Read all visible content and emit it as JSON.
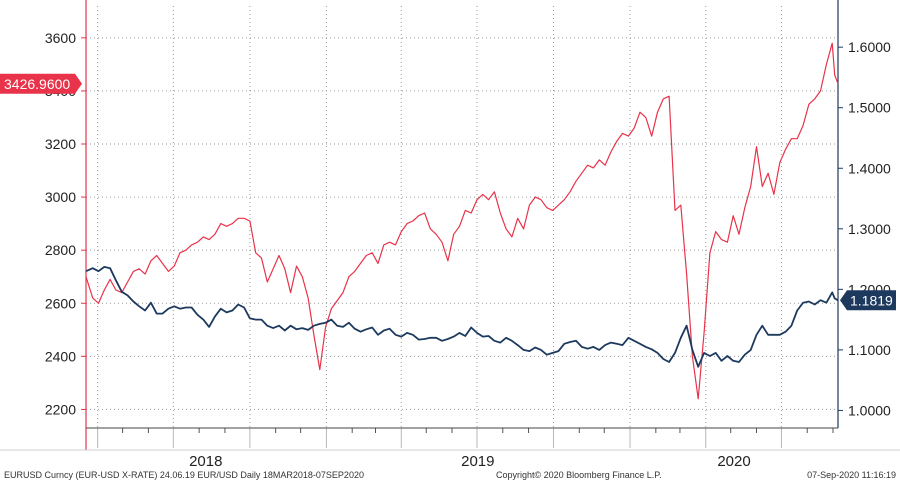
{
  "chart_data": {
    "type": "line",
    "x_range": [
      "2018-03-18",
      "2020-09-07"
    ],
    "x_tick_labels": [
      "2018",
      "2019",
      "2020"
    ],
    "left_axis": {
      "ticks": [
        2200,
        2400,
        2600,
        2800,
        3000,
        3200,
        3400,
        3600
      ],
      "ylim": [
        2130,
        3720
      ]
    },
    "right_axis": {
      "ticks": [
        "1.0000",
        "1.1000",
        "1.2000",
        "1.3000",
        "1.4000",
        "1.5000",
        "1.6000"
      ],
      "ylim": [
        0.971,
        1.668
      ]
    },
    "grid": true,
    "series": [
      {
        "axis": "left",
        "color": "#e8334a",
        "last_value_label": "3426.9600",
        "points": [
          [
            "2018-03-18",
            2700
          ],
          [
            "2018-03-26",
            2620
          ],
          [
            "2018-04-02",
            2600
          ],
          [
            "2018-04-09",
            2650
          ],
          [
            "2018-04-16",
            2690
          ],
          [
            "2018-04-23",
            2650
          ],
          [
            "2018-04-30",
            2640
          ],
          [
            "2018-05-07",
            2680
          ],
          [
            "2018-05-14",
            2720
          ],
          [
            "2018-05-21",
            2730
          ],
          [
            "2018-05-28",
            2710
          ],
          [
            "2018-06-04",
            2760
          ],
          [
            "2018-06-11",
            2780
          ],
          [
            "2018-06-18",
            2750
          ],
          [
            "2018-06-25",
            2720
          ],
          [
            "2018-07-02",
            2740
          ],
          [
            "2018-07-09",
            2790
          ],
          [
            "2018-07-16",
            2800
          ],
          [
            "2018-07-23",
            2820
          ],
          [
            "2018-07-30",
            2830
          ],
          [
            "2018-08-06",
            2850
          ],
          [
            "2018-08-13",
            2840
          ],
          [
            "2018-08-20",
            2860
          ],
          [
            "2018-08-27",
            2900
          ],
          [
            "2018-09-03",
            2890
          ],
          [
            "2018-09-10",
            2900
          ],
          [
            "2018-09-17",
            2920
          ],
          [
            "2018-09-24",
            2920
          ],
          [
            "2018-10-01",
            2910
          ],
          [
            "2018-10-08",
            2790
          ],
          [
            "2018-10-15",
            2770
          ],
          [
            "2018-10-22",
            2680
          ],
          [
            "2018-10-29",
            2730
          ],
          [
            "2018-11-05",
            2780
          ],
          [
            "2018-11-12",
            2730
          ],
          [
            "2018-11-19",
            2640
          ],
          [
            "2018-11-26",
            2740
          ],
          [
            "2018-12-03",
            2700
          ],
          [
            "2018-12-10",
            2620
          ],
          [
            "2018-12-17",
            2480
          ],
          [
            "2018-12-24",
            2350
          ],
          [
            "2018-12-31",
            2510
          ],
          [
            "2019-01-07",
            2580
          ],
          [
            "2019-01-14",
            2610
          ],
          [
            "2019-01-21",
            2640
          ],
          [
            "2019-01-28",
            2700
          ],
          [
            "2019-02-04",
            2720
          ],
          [
            "2019-02-11",
            2750
          ],
          [
            "2019-02-18",
            2780
          ],
          [
            "2019-02-25",
            2790
          ],
          [
            "2019-03-04",
            2750
          ],
          [
            "2019-03-11",
            2820
          ],
          [
            "2019-03-18",
            2830
          ],
          [
            "2019-03-25",
            2820
          ],
          [
            "2019-04-01",
            2870
          ],
          [
            "2019-04-08",
            2900
          ],
          [
            "2019-04-15",
            2910
          ],
          [
            "2019-04-22",
            2930
          ],
          [
            "2019-04-29",
            2940
          ],
          [
            "2019-05-06",
            2880
          ],
          [
            "2019-05-13",
            2860
          ],
          [
            "2019-05-20",
            2830
          ],
          [
            "2019-05-27",
            2760
          ],
          [
            "2019-06-03",
            2860
          ],
          [
            "2019-06-10",
            2890
          ],
          [
            "2019-06-17",
            2950
          ],
          [
            "2019-06-24",
            2940
          ],
          [
            "2019-07-01",
            2990
          ],
          [
            "2019-07-08",
            3010
          ],
          [
            "2019-07-15",
            2990
          ],
          [
            "2019-07-22",
            3020
          ],
          [
            "2019-07-29",
            2940
          ],
          [
            "2019-08-05",
            2880
          ],
          [
            "2019-08-12",
            2850
          ],
          [
            "2019-08-19",
            2920
          ],
          [
            "2019-08-26",
            2880
          ],
          [
            "2019-09-02",
            2970
          ],
          [
            "2019-09-09",
            3000
          ],
          [
            "2019-09-16",
            2990
          ],
          [
            "2019-09-23",
            2960
          ],
          [
            "2019-09-30",
            2950
          ],
          [
            "2019-10-07",
            2970
          ],
          [
            "2019-10-14",
            2990
          ],
          [
            "2019-10-21",
            3020
          ],
          [
            "2019-10-28",
            3060
          ],
          [
            "2019-11-04",
            3090
          ],
          [
            "2019-11-11",
            3120
          ],
          [
            "2019-11-18",
            3110
          ],
          [
            "2019-11-25",
            3140
          ],
          [
            "2019-12-02",
            3120
          ],
          [
            "2019-12-09",
            3170
          ],
          [
            "2019-12-16",
            3210
          ],
          [
            "2019-12-23",
            3240
          ],
          [
            "2019-12-30",
            3230
          ],
          [
            "2020-01-06",
            3260
          ],
          [
            "2020-01-13",
            3320
          ],
          [
            "2020-01-20",
            3300
          ],
          [
            "2020-01-27",
            3230
          ],
          [
            "2020-02-03",
            3320
          ],
          [
            "2020-02-10",
            3370
          ],
          [
            "2020-02-17",
            3380
          ],
          [
            "2020-02-24",
            2950
          ],
          [
            "2020-03-02",
            2970
          ],
          [
            "2020-03-09",
            2710
          ],
          [
            "2020-03-16",
            2400
          ],
          [
            "2020-03-23",
            2240
          ],
          [
            "2020-03-30",
            2490
          ],
          [
            "2020-04-06",
            2790
          ],
          [
            "2020-04-13",
            2870
          ],
          [
            "2020-04-20",
            2840
          ],
          [
            "2020-04-27",
            2830
          ],
          [
            "2020-05-04",
            2930
          ],
          [
            "2020-05-11",
            2860
          ],
          [
            "2020-05-18",
            2960
          ],
          [
            "2020-05-25",
            3040
          ],
          [
            "2020-06-01",
            3190
          ],
          [
            "2020-06-08",
            3040
          ],
          [
            "2020-06-15",
            3090
          ],
          [
            "2020-06-22",
            3010
          ],
          [
            "2020-06-29",
            3130
          ],
          [
            "2020-07-06",
            3180
          ],
          [
            "2020-07-13",
            3220
          ],
          [
            "2020-07-20",
            3220
          ],
          [
            "2020-07-27",
            3270
          ],
          [
            "2020-08-03",
            3350
          ],
          [
            "2020-08-10",
            3370
          ],
          [
            "2020-08-17",
            3400
          ],
          [
            "2020-08-24",
            3500
          ],
          [
            "2020-08-31",
            3580
          ],
          [
            "2020-09-03",
            3460
          ],
          [
            "2020-09-07",
            3427
          ]
        ]
      },
      {
        "axis": "right",
        "color": "#1d3a5e",
        "last_value_label": "1.1819",
        "points": [
          [
            "2018-03-18",
            1.23
          ],
          [
            "2018-03-26",
            1.235
          ],
          [
            "2018-04-02",
            1.23
          ],
          [
            "2018-04-09",
            1.237
          ],
          [
            "2018-04-16",
            1.235
          ],
          [
            "2018-04-23",
            1.215
          ],
          [
            "2018-04-30",
            1.196
          ],
          [
            "2018-05-07",
            1.19
          ],
          [
            "2018-05-14",
            1.18
          ],
          [
            "2018-05-21",
            1.172
          ],
          [
            "2018-05-28",
            1.165
          ],
          [
            "2018-06-04",
            1.178
          ],
          [
            "2018-06-11",
            1.16
          ],
          [
            "2018-06-18",
            1.16
          ],
          [
            "2018-06-25",
            1.168
          ],
          [
            "2018-07-02",
            1.172
          ],
          [
            "2018-07-09",
            1.168
          ],
          [
            "2018-07-16",
            1.17
          ],
          [
            "2018-07-23",
            1.17
          ],
          [
            "2018-07-30",
            1.158
          ],
          [
            "2018-08-06",
            1.15
          ],
          [
            "2018-08-13",
            1.138
          ],
          [
            "2018-08-20",
            1.155
          ],
          [
            "2018-08-27",
            1.168
          ],
          [
            "2018-09-03",
            1.162
          ],
          [
            "2018-09-10",
            1.165
          ],
          [
            "2018-09-17",
            1.175
          ],
          [
            "2018-09-24",
            1.17
          ],
          [
            "2018-10-01",
            1.152
          ],
          [
            "2018-10-08",
            1.15
          ],
          [
            "2018-10-15",
            1.15
          ],
          [
            "2018-10-22",
            1.14
          ],
          [
            "2018-10-29",
            1.136
          ],
          [
            "2018-11-05",
            1.14
          ],
          [
            "2018-11-12",
            1.132
          ],
          [
            "2018-11-19",
            1.14
          ],
          [
            "2018-11-26",
            1.134
          ],
          [
            "2018-12-03",
            1.136
          ],
          [
            "2018-12-10",
            1.133
          ],
          [
            "2018-12-17",
            1.14
          ],
          [
            "2018-12-24",
            1.143
          ],
          [
            "2018-12-31",
            1.145
          ],
          [
            "2019-01-07",
            1.15
          ],
          [
            "2019-01-14",
            1.14
          ],
          [
            "2019-01-21",
            1.138
          ],
          [
            "2019-01-28",
            1.145
          ],
          [
            "2019-02-04",
            1.135
          ],
          [
            "2019-02-11",
            1.13
          ],
          [
            "2019-02-18",
            1.134
          ],
          [
            "2019-02-25",
            1.137
          ],
          [
            "2019-03-04",
            1.125
          ],
          [
            "2019-03-11",
            1.132
          ],
          [
            "2019-03-18",
            1.135
          ],
          [
            "2019-03-25",
            1.125
          ],
          [
            "2019-04-01",
            1.122
          ],
          [
            "2019-04-08",
            1.128
          ],
          [
            "2019-04-15",
            1.125
          ],
          [
            "2019-04-22",
            1.117
          ],
          [
            "2019-04-29",
            1.118
          ],
          [
            "2019-05-06",
            1.12
          ],
          [
            "2019-05-13",
            1.12
          ],
          [
            "2019-05-20",
            1.115
          ],
          [
            "2019-05-27",
            1.118
          ],
          [
            "2019-06-03",
            1.122
          ],
          [
            "2019-06-10",
            1.128
          ],
          [
            "2019-06-17",
            1.123
          ],
          [
            "2019-06-24",
            1.137
          ],
          [
            "2019-07-01",
            1.128
          ],
          [
            "2019-07-08",
            1.122
          ],
          [
            "2019-07-15",
            1.123
          ],
          [
            "2019-07-22",
            1.115
          ],
          [
            "2019-07-29",
            1.112
          ],
          [
            "2019-08-05",
            1.12
          ],
          [
            "2019-08-12",
            1.115
          ],
          [
            "2019-08-19",
            1.108
          ],
          [
            "2019-08-26",
            1.1
          ],
          [
            "2019-09-02",
            1.098
          ],
          [
            "2019-09-09",
            1.104
          ],
          [
            "2019-09-16",
            1.1
          ],
          [
            "2019-09-23",
            1.092
          ],
          [
            "2019-09-30",
            1.095
          ],
          [
            "2019-10-07",
            1.098
          ],
          [
            "2019-10-14",
            1.11
          ],
          [
            "2019-10-21",
            1.113
          ],
          [
            "2019-10-28",
            1.115
          ],
          [
            "2019-11-04",
            1.105
          ],
          [
            "2019-11-11",
            1.102
          ],
          [
            "2019-11-18",
            1.105
          ],
          [
            "2019-11-25",
            1.1
          ],
          [
            "2019-12-02",
            1.108
          ],
          [
            "2019-12-09",
            1.112
          ],
          [
            "2019-12-16",
            1.11
          ],
          [
            "2019-12-23",
            1.108
          ],
          [
            "2019-12-30",
            1.12
          ],
          [
            "2020-01-06",
            1.115
          ],
          [
            "2020-01-13",
            1.11
          ],
          [
            "2020-01-20",
            1.105
          ],
          [
            "2020-01-27",
            1.101
          ],
          [
            "2020-02-03",
            1.095
          ],
          [
            "2020-02-10",
            1.085
          ],
          [
            "2020-02-17",
            1.08
          ],
          [
            "2020-02-24",
            1.095
          ],
          [
            "2020-03-02",
            1.12
          ],
          [
            "2020-03-09",
            1.14
          ],
          [
            "2020-03-16",
            1.1
          ],
          [
            "2020-03-23",
            1.072
          ],
          [
            "2020-03-30",
            1.095
          ],
          [
            "2020-04-06",
            1.09
          ],
          [
            "2020-04-13",
            1.095
          ],
          [
            "2020-04-20",
            1.082
          ],
          [
            "2020-04-27",
            1.09
          ],
          [
            "2020-05-04",
            1.082
          ],
          [
            "2020-05-11",
            1.08
          ],
          [
            "2020-05-18",
            1.092
          ],
          [
            "2020-05-25",
            1.1
          ],
          [
            "2020-06-01",
            1.125
          ],
          [
            "2020-06-08",
            1.14
          ],
          [
            "2020-06-15",
            1.125
          ],
          [
            "2020-06-22",
            1.125
          ],
          [
            "2020-06-29",
            1.125
          ],
          [
            "2020-07-06",
            1.13
          ],
          [
            "2020-07-13",
            1.14
          ],
          [
            "2020-07-20",
            1.165
          ],
          [
            "2020-07-27",
            1.178
          ],
          [
            "2020-08-03",
            1.18
          ],
          [
            "2020-08-10",
            1.175
          ],
          [
            "2020-08-17",
            1.182
          ],
          [
            "2020-08-24",
            1.178
          ],
          [
            "2020-08-31",
            1.195
          ],
          [
            "2020-09-03",
            1.185
          ],
          [
            "2020-09-07",
            1.1819
          ]
        ]
      }
    ]
  },
  "footer": {
    "series_info": "EURUSD Curncy (EUR-USD X-RATE) 24.06.19 EUR/USD  Daily 18MAR2018-07SEP2020",
    "copyright": "Copyright© 2020 Bloomberg Finance L.P.",
    "timestamp": "07-Sep-2020  11:16:19"
  }
}
